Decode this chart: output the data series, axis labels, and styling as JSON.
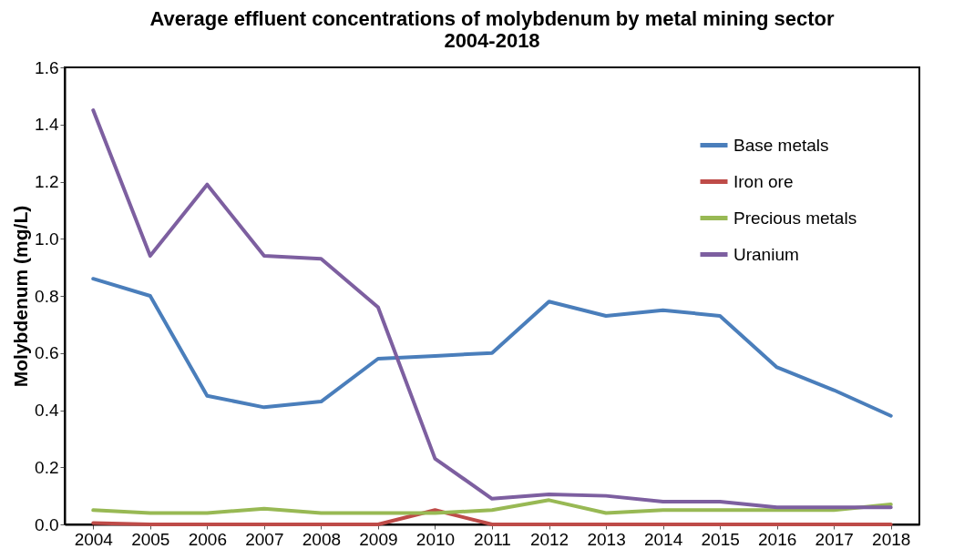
{
  "chart_data": {
    "type": "line",
    "title": "Average effluent concentrations of molybdenum by metal mining sector 2004-2018",
    "ylabel": "Molybdenum (mg/L)",
    "categories": [
      "2004",
      "2005",
      "2006",
      "2007",
      "2008",
      "2009",
      "2010",
      "2011",
      "2012",
      "2013",
      "2014",
      "2015",
      "2016",
      "2017",
      "2018"
    ],
    "series": [
      {
        "name": "Base metals",
        "color": "#4a7ebb",
        "values": [
          0.86,
          0.8,
          0.45,
          0.41,
          0.43,
          0.58,
          0.59,
          0.6,
          0.78,
          0.73,
          0.75,
          0.73,
          0.55,
          0.47,
          0.38
        ]
      },
      {
        "name": "Iron ore",
        "color": "#be4b48",
        "values": [
          0.005,
          0,
          0,
          0,
          0,
          0,
          0.05,
          0,
          0,
          0,
          0,
          0,
          0,
          0,
          0
        ]
      },
      {
        "name": "Precious metals",
        "color": "#98b954",
        "values": [
          0.05,
          0.04,
          0.04,
          0.055,
          0.04,
          0.04,
          0.04,
          0.05,
          0.085,
          0.04,
          0.05,
          0.05,
          0.05,
          0.05,
          0.07
        ]
      },
      {
        "name": "Uranium",
        "color": "#7d5fa0",
        "values": [
          1.45,
          0.94,
          1.19,
          0.94,
          0.93,
          0.76,
          0.23,
          0.09,
          0.105,
          0.1,
          0.08,
          0.08,
          0.06,
          0.06,
          0.06
        ]
      }
    ],
    "ylim": [
      0,
      1.6
    ],
    "yticks": [
      {
        "value": 0,
        "label": "0.0"
      },
      0.2,
      0.4,
      0.6,
      0.8,
      {
        "value": 1,
        "label": "1.0"
      },
      1.2,
      1.4,
      1.6
    ],
    "legend": "top right",
    "grid": false,
    "line_style": "solid",
    "marker": "none"
  }
}
